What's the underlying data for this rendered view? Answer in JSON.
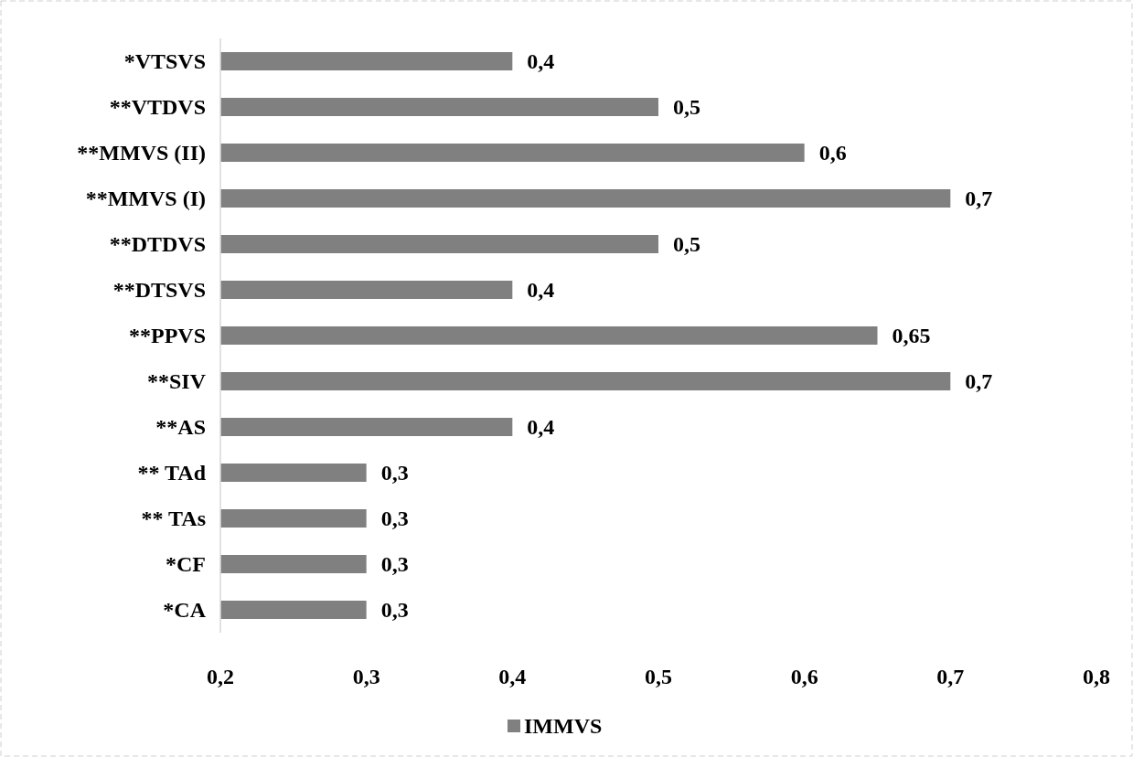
{
  "chart_data": {
    "type": "bar",
    "orientation": "horizontal",
    "categories": [
      "*VTSVS",
      "**VTDVS",
      "**MMVS (II)",
      "**MMVS (I)",
      "**DTDVS",
      "**DTSVS",
      "**PPVS",
      "**SIV",
      "**AS",
      "** TAd",
      "** TAs",
      "*CF",
      "*CA"
    ],
    "series": [
      {
        "name": "IMMVS",
        "color": "#808080",
        "values": [
          0.4,
          0.5,
          0.6,
          0.7,
          0.5,
          0.4,
          0.65,
          0.7,
          0.4,
          0.3,
          0.3,
          0.3,
          0.3
        ],
        "value_labels": [
          "0,4",
          "0,5",
          "0,6",
          "0,7",
          "0,5",
          "0,4",
          "0,65",
          "0,7",
          "0,4",
          "0,3",
          "0,3",
          "0,3",
          "0,3"
        ]
      }
    ],
    "xlim": [
      0.2,
      0.8
    ],
    "xticks": [
      {
        "value": 0.2,
        "label": "0,2"
      },
      {
        "value": 0.3,
        "label": "0,3"
      },
      {
        "value": 0.4,
        "label": "0,4"
      },
      {
        "value": 0.5,
        "label": "0,5"
      },
      {
        "value": 0.6,
        "label": "0,6"
      },
      {
        "value": 0.7,
        "label": "0,7"
      },
      {
        "value": 0.8,
        "label": "0,8"
      }
    ],
    "grid": false,
    "legend": "bottom"
  }
}
